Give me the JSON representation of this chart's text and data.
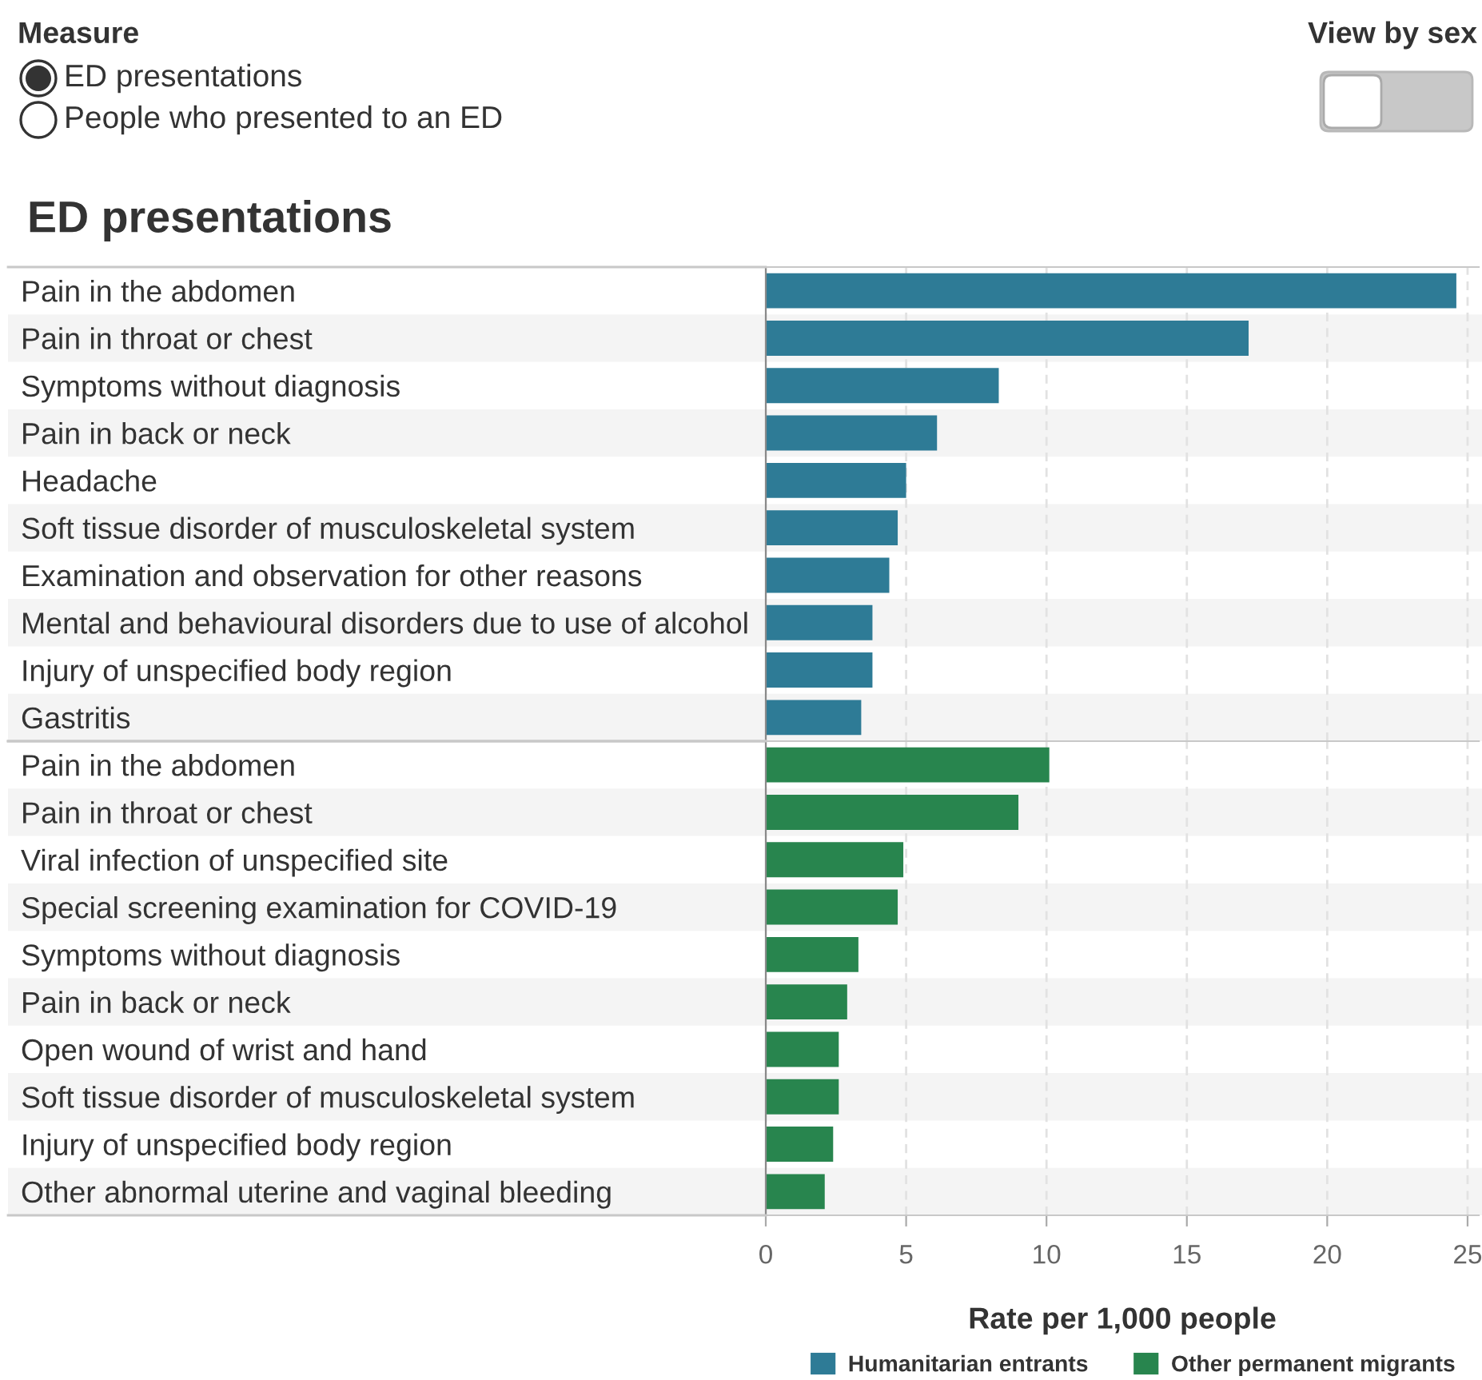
{
  "chart_data": [
    {
      "type": "bar",
      "orientation": "horizontal",
      "title": "ED presentations",
      "annotations": [
        "Measure",
        "ED presentations",
        "People who presented to an ED",
        "View by sex"
      ],
      "categories": [
        "Pain in the abdomen",
        "Pain in throat or chest",
        "Symptoms without diagnosis",
        "Pain in back or neck",
        "Headache",
        "Soft tissue disorder of musculoskeletal system",
        "Examination and observation for other reasons",
        "Mental and behavioural disorders due to use of alcohol",
        "Injury of unspecified body region",
        "Gastritis"
      ],
      "series": [
        {
          "name": "Humanitarian entrants",
          "color": "#2e7b96",
          "values": [
            24.6,
            17.2,
            8.3,
            6.1,
            5.0,
            4.7,
            4.4,
            3.8,
            3.8,
            3.4
          ]
        }
      ],
      "xlim": [
        0,
        25.4
      ],
      "xticks": [
        0,
        5,
        10,
        15,
        20,
        25
      ],
      "tick_labels": "y",
      "grid": "x"
    },
    {
      "type": "bar",
      "orientation": "horizontal",
      "xlabel": "Rate per 1,000 people",
      "categories": [
        "Pain in the abdomen",
        "Pain in throat or chest",
        "Viral infection of unspecified site",
        "Special screening examination for COVID-19",
        "Symptoms without diagnosis",
        "Pain in back or neck",
        "Open wound of wrist and hand",
        "Soft tissue disorder of musculoskeletal system",
        "Injury of unspecified body region",
        "Other abnormal uterine and vaginal bleeding"
      ],
      "series": [
        {
          "name": "Other permanent migrants",
          "color": "#28854e",
          "values": [
            10.1,
            9.0,
            4.9,
            4.7,
            3.3,
            2.9,
            2.6,
            2.6,
            2.4,
            2.1
          ]
        }
      ],
      "xlim": [
        0,
        25.4
      ],
      "xticks": [
        0,
        5,
        10,
        15,
        20,
        25
      ],
      "grid": "x",
      "legend": "bottom"
    }
  ]
}
